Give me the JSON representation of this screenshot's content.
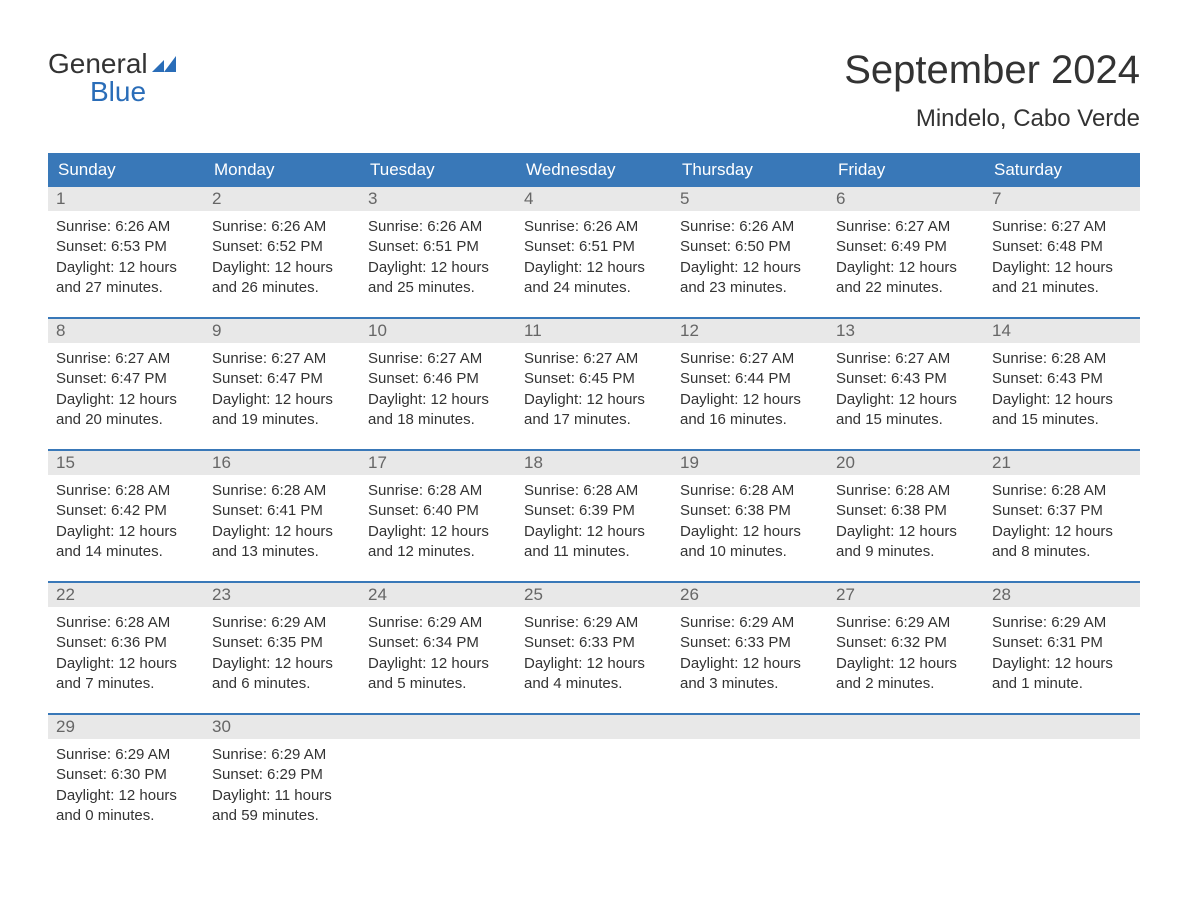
{
  "logo": {
    "general": "General",
    "blue": "Blue",
    "flag_color": "#2a6db8"
  },
  "header": {
    "month_year": "September 2024",
    "location": "Mindelo, Cabo Verde"
  },
  "colors": {
    "header_bg": "#3978b8",
    "header_text": "#ffffff",
    "day_number_bg": "#e8e8e8",
    "day_number_text": "#666666",
    "body_text": "#333333",
    "week_border": "#3978b8",
    "logo_blue": "#2a6db8",
    "background": "#ffffff"
  },
  "typography": {
    "month_year_fontsize": 40,
    "location_fontsize": 24,
    "day_header_fontsize": 17,
    "day_number_fontsize": 17,
    "content_fontsize": 15,
    "logo_fontsize": 28
  },
  "day_headers": [
    "Sunday",
    "Monday",
    "Tuesday",
    "Wednesday",
    "Thursday",
    "Friday",
    "Saturday"
  ],
  "weeks": [
    [
      {
        "day": "1",
        "sunrise": "Sunrise: 6:26 AM",
        "sunset": "Sunset: 6:53 PM",
        "daylight1": "Daylight: 12 hours",
        "daylight2": "and 27 minutes."
      },
      {
        "day": "2",
        "sunrise": "Sunrise: 6:26 AM",
        "sunset": "Sunset: 6:52 PM",
        "daylight1": "Daylight: 12 hours",
        "daylight2": "and 26 minutes."
      },
      {
        "day": "3",
        "sunrise": "Sunrise: 6:26 AM",
        "sunset": "Sunset: 6:51 PM",
        "daylight1": "Daylight: 12 hours",
        "daylight2": "and 25 minutes."
      },
      {
        "day": "4",
        "sunrise": "Sunrise: 6:26 AM",
        "sunset": "Sunset: 6:51 PM",
        "daylight1": "Daylight: 12 hours",
        "daylight2": "and 24 minutes."
      },
      {
        "day": "5",
        "sunrise": "Sunrise: 6:26 AM",
        "sunset": "Sunset: 6:50 PM",
        "daylight1": "Daylight: 12 hours",
        "daylight2": "and 23 minutes."
      },
      {
        "day": "6",
        "sunrise": "Sunrise: 6:27 AM",
        "sunset": "Sunset: 6:49 PM",
        "daylight1": "Daylight: 12 hours",
        "daylight2": "and 22 minutes."
      },
      {
        "day": "7",
        "sunrise": "Sunrise: 6:27 AM",
        "sunset": "Sunset: 6:48 PM",
        "daylight1": "Daylight: 12 hours",
        "daylight2": "and 21 minutes."
      }
    ],
    [
      {
        "day": "8",
        "sunrise": "Sunrise: 6:27 AM",
        "sunset": "Sunset: 6:47 PM",
        "daylight1": "Daylight: 12 hours",
        "daylight2": "and 20 minutes."
      },
      {
        "day": "9",
        "sunrise": "Sunrise: 6:27 AM",
        "sunset": "Sunset: 6:47 PM",
        "daylight1": "Daylight: 12 hours",
        "daylight2": "and 19 minutes."
      },
      {
        "day": "10",
        "sunrise": "Sunrise: 6:27 AM",
        "sunset": "Sunset: 6:46 PM",
        "daylight1": "Daylight: 12 hours",
        "daylight2": "and 18 minutes."
      },
      {
        "day": "11",
        "sunrise": "Sunrise: 6:27 AM",
        "sunset": "Sunset: 6:45 PM",
        "daylight1": "Daylight: 12 hours",
        "daylight2": "and 17 minutes."
      },
      {
        "day": "12",
        "sunrise": "Sunrise: 6:27 AM",
        "sunset": "Sunset: 6:44 PM",
        "daylight1": "Daylight: 12 hours",
        "daylight2": "and 16 minutes."
      },
      {
        "day": "13",
        "sunrise": "Sunrise: 6:27 AM",
        "sunset": "Sunset: 6:43 PM",
        "daylight1": "Daylight: 12 hours",
        "daylight2": "and 15 minutes."
      },
      {
        "day": "14",
        "sunrise": "Sunrise: 6:28 AM",
        "sunset": "Sunset: 6:43 PM",
        "daylight1": "Daylight: 12 hours",
        "daylight2": "and 15 minutes."
      }
    ],
    [
      {
        "day": "15",
        "sunrise": "Sunrise: 6:28 AM",
        "sunset": "Sunset: 6:42 PM",
        "daylight1": "Daylight: 12 hours",
        "daylight2": "and 14 minutes."
      },
      {
        "day": "16",
        "sunrise": "Sunrise: 6:28 AM",
        "sunset": "Sunset: 6:41 PM",
        "daylight1": "Daylight: 12 hours",
        "daylight2": "and 13 minutes."
      },
      {
        "day": "17",
        "sunrise": "Sunrise: 6:28 AM",
        "sunset": "Sunset: 6:40 PM",
        "daylight1": "Daylight: 12 hours",
        "daylight2": "and 12 minutes."
      },
      {
        "day": "18",
        "sunrise": "Sunrise: 6:28 AM",
        "sunset": "Sunset: 6:39 PM",
        "daylight1": "Daylight: 12 hours",
        "daylight2": "and 11 minutes."
      },
      {
        "day": "19",
        "sunrise": "Sunrise: 6:28 AM",
        "sunset": "Sunset: 6:38 PM",
        "daylight1": "Daylight: 12 hours",
        "daylight2": "and 10 minutes."
      },
      {
        "day": "20",
        "sunrise": "Sunrise: 6:28 AM",
        "sunset": "Sunset: 6:38 PM",
        "daylight1": "Daylight: 12 hours",
        "daylight2": "and 9 minutes."
      },
      {
        "day": "21",
        "sunrise": "Sunrise: 6:28 AM",
        "sunset": "Sunset: 6:37 PM",
        "daylight1": "Daylight: 12 hours",
        "daylight2": "and 8 minutes."
      }
    ],
    [
      {
        "day": "22",
        "sunrise": "Sunrise: 6:28 AM",
        "sunset": "Sunset: 6:36 PM",
        "daylight1": "Daylight: 12 hours",
        "daylight2": "and 7 minutes."
      },
      {
        "day": "23",
        "sunrise": "Sunrise: 6:29 AM",
        "sunset": "Sunset: 6:35 PM",
        "daylight1": "Daylight: 12 hours",
        "daylight2": "and 6 minutes."
      },
      {
        "day": "24",
        "sunrise": "Sunrise: 6:29 AM",
        "sunset": "Sunset: 6:34 PM",
        "daylight1": "Daylight: 12 hours",
        "daylight2": "and 5 minutes."
      },
      {
        "day": "25",
        "sunrise": "Sunrise: 6:29 AM",
        "sunset": "Sunset: 6:33 PM",
        "daylight1": "Daylight: 12 hours",
        "daylight2": "and 4 minutes."
      },
      {
        "day": "26",
        "sunrise": "Sunrise: 6:29 AM",
        "sunset": "Sunset: 6:33 PM",
        "daylight1": "Daylight: 12 hours",
        "daylight2": "and 3 minutes."
      },
      {
        "day": "27",
        "sunrise": "Sunrise: 6:29 AM",
        "sunset": "Sunset: 6:32 PM",
        "daylight1": "Daylight: 12 hours",
        "daylight2": "and 2 minutes."
      },
      {
        "day": "28",
        "sunrise": "Sunrise: 6:29 AM",
        "sunset": "Sunset: 6:31 PM",
        "daylight1": "Daylight: 12 hours",
        "daylight2": "and 1 minute."
      }
    ],
    [
      {
        "day": "29",
        "sunrise": "Sunrise: 6:29 AM",
        "sunset": "Sunset: 6:30 PM",
        "daylight1": "Daylight: 12 hours",
        "daylight2": "and 0 minutes."
      },
      {
        "day": "30",
        "sunrise": "Sunrise: 6:29 AM",
        "sunset": "Sunset: 6:29 PM",
        "daylight1": "Daylight: 11 hours",
        "daylight2": "and 59 minutes."
      },
      {
        "empty": true
      },
      {
        "empty": true
      },
      {
        "empty": true
      },
      {
        "empty": true
      },
      {
        "empty": true
      }
    ]
  ]
}
